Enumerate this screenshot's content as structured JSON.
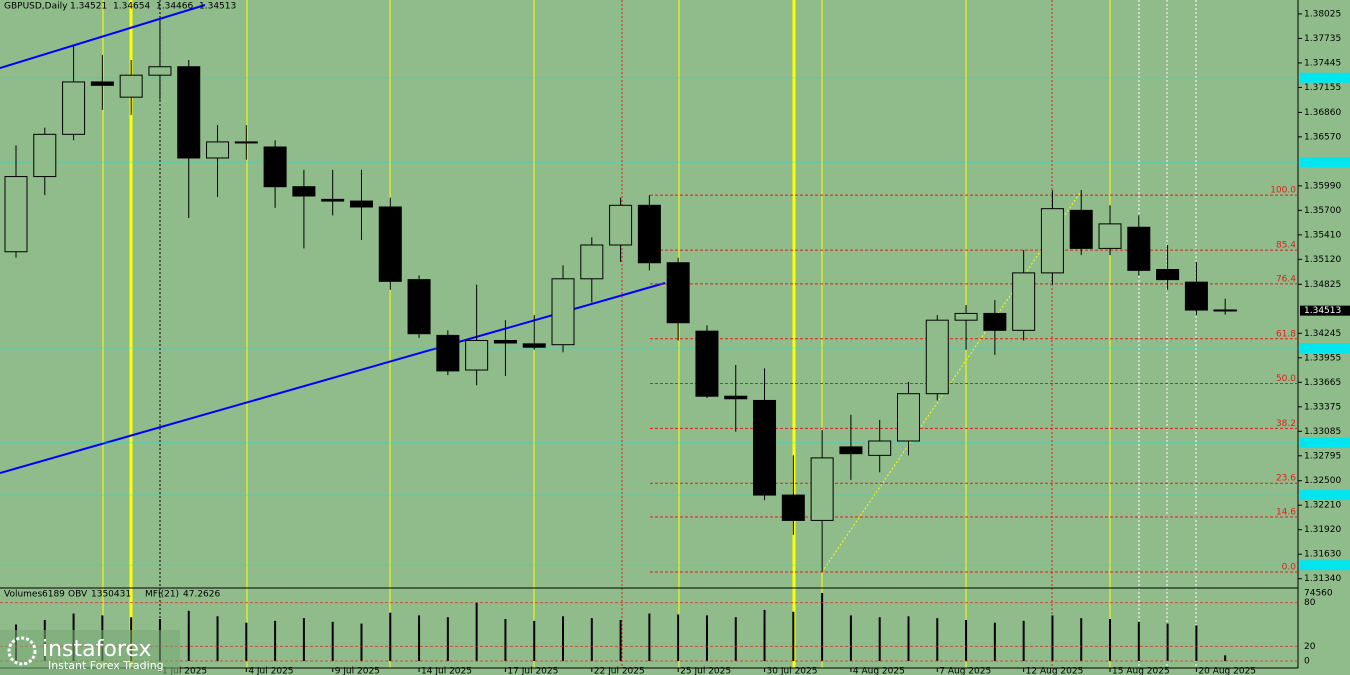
{
  "chart_data": {
    "type": "candlestick",
    "title": "GBPUSD,Daily",
    "categories": [
      null,
      null,
      null,
      null,
      null,
      "1 Jul 2025",
      null,
      null,
      "4 Jul 2025",
      null,
      null,
      "9 Jul 2025",
      null,
      null,
      "14 Jul 2025",
      null,
      null,
      "17 Jul 2025",
      null,
      null,
      "22 Jul 2025",
      null,
      null,
      "25 Jul 2025",
      null,
      null,
      "30 Jul 2025",
      null,
      null,
      "4 Aug 2025",
      null,
      null,
      "7 Aug 2025",
      null,
      null,
      "12 Aug 2025",
      null,
      null,
      "15 Aug 2025",
      null,
      null,
      "20 Aug 2025",
      null
    ],
    "candles": {
      "open": [
        1.3521,
        1.361,
        1.366,
        1.3722,
        1.3704,
        1.373,
        1.374,
        1.3632,
        1.3651,
        1.3645,
        1.3598,
        1.3583,
        1.3581,
        1.3574,
        1.3488,
        1.3422,
        1.3381,
        1.3416,
        1.3412,
        1.3411,
        1.3489,
        1.3529,
        1.3576,
        1.3508,
        1.3427,
        1.335,
        1.3345,
        1.3233,
        1.3203,
        1.329,
        1.328,
        1.3297,
        1.3353,
        1.344,
        1.3448,
        1.3428,
        1.3496,
        1.357,
        1.3525,
        1.355,
        1.35,
        1.3485,
        1.34521
      ],
      "high": [
        1.3647,
        1.3668,
        1.3766,
        1.3754,
        1.3748,
        1.3793,
        1.3748,
        1.3671,
        1.3671,
        1.3653,
        1.3618,
        1.3618,
        1.3618,
        1.3585,
        1.3493,
        1.3428,
        1.3482,
        1.344,
        1.3446,
        1.3505,
        1.3538,
        1.3585,
        1.3588,
        1.3514,
        1.3434,
        1.3387,
        1.3383,
        1.328,
        1.331,
        1.3328,
        1.3322,
        1.3367,
        1.3446,
        1.3458,
        1.3464,
        1.3523,
        1.3594,
        1.3594,
        1.3576,
        1.3564,
        1.3529,
        1.3509,
        1.34654
      ],
      "low": [
        1.3514,
        1.3588,
        1.3653,
        1.3689,
        1.3683,
        1.3701,
        1.3561,
        1.3586,
        1.363,
        1.3573,
        1.3525,
        1.3564,
        1.3535,
        1.3476,
        1.3419,
        1.3375,
        1.3363,
        1.3374,
        1.3405,
        1.3402,
        1.3461,
        1.3509,
        1.3499,
        1.3416,
        1.3348,
        1.3308,
        1.3227,
        1.3186,
        1.3142,
        1.3251,
        1.326,
        1.328,
        1.3345,
        1.3405,
        1.3399,
        1.3416,
        1.3482,
        1.3517,
        1.3517,
        1.3493,
        1.3476,
        1.3446,
        1.34466
      ],
      "close": [
        1.361,
        1.366,
        1.3722,
        1.3718,
        1.373,
        1.374,
        1.3632,
        1.3651,
        1.365,
        1.3598,
        1.3587,
        1.3581,
        1.3574,
        1.3486,
        1.3424,
        1.338,
        1.3416,
        1.3413,
        1.3408,
        1.3489,
        1.3529,
        1.3576,
        1.3508,
        1.3437,
        1.335,
        1.3347,
        1.3233,
        1.3203,
        1.3277,
        1.3282,
        1.3297,
        1.3353,
        1.344,
        1.3448,
        1.3428,
        1.3496,
        1.3572,
        1.3525,
        1.3554,
        1.3499,
        1.3488,
        1.3452,
        1.34513
      ]
    },
    "ylim": [
      1.3123,
      1.3819
    ],
    "yticks": [
      1.38025,
      1.37735,
      1.37445,
      1.37155,
      {
        "value": 1.3686,
        "label": "1.36860"
      },
      {
        "value": 1.3657,
        "label": "1.36570"
      },
      {
        "value": 1.3599,
        "label": "1.35990"
      },
      {
        "value": 1.357,
        "label": "1.35700"
      },
      {
        "value": 1.3541,
        "label": "1.35410"
      },
      {
        "value": 1.3512,
        "label": "1.35120"
      },
      1.34825,
      1.34245,
      1.33955,
      1.33665,
      1.33375,
      1.33085,
      1.32795,
      {
        "value": 1.325,
        "label": "1.32500"
      },
      {
        "value": 1.3221,
        "label": "1.32210"
      },
      {
        "value": 1.3192,
        "label": "1.31920"
      },
      {
        "value": 1.3163,
        "label": "1.31630"
      },
      {
        "value": 1.3134,
        "label": "1.31340"
      }
    ],
    "bull_color": "#8fbc8a",
    "bear_color": "#000000",
    "fib": [
      {
        "label": "100.0",
        "price": 1.3588
      },
      {
        "label": "85.4",
        "price": 1.3523
      },
      {
        "label": "76.4",
        "price": 1.3483
      },
      {
        "label": "61.8",
        "price": 1.3418
      },
      {
        "label": "50.0",
        "price": 1.3365
      },
      {
        "label": "38.2",
        "price": 1.3312
      },
      {
        "label": "23.6",
        "price": 1.3247
      },
      {
        "label": "14.6",
        "price": 1.3207
      },
      {
        "label": "0.0",
        "price": 1.3142
      }
    ],
    "fib_color": "#e02020",
    "levels": [
      1.3727,
      1.3627,
      1.3407,
      1.3295,
      1.3233,
      1.315
    ],
    "level_color": "#00e5ee",
    "volumes": [
      40000,
      45000,
      52000,
      50000,
      48000,
      46000,
      55000,
      49000,
      42000,
      44000,
      47000,
      43000,
      41000,
      53000,
      50000,
      48000,
      64000,
      46000,
      44000,
      49000,
      47000,
      45000,
      52000,
      51000,
      50000,
      48000,
      56000,
      54000,
      74500,
      50000,
      48000,
      49000,
      47000,
      45000,
      42000,
      44000,
      50000,
      47000,
      46000,
      43000,
      41000,
      39000,
      6189
    ],
    "vol_ylim": [
      0,
      74560
    ],
    "vol_yticks": [
      74560
    ],
    "indicators": {
      "volumes_label": "Volumes",
      "obv_label": "OBV",
      "obv": 1350431,
      "mfi_label": "MFI(21)",
      "mfi": 47.2626
    },
    "mfi_ylim": [
      0,
      100
    ],
    "mfi_yticks": [
      80,
      20,
      0
    ]
  },
  "logo": {
    "name": "instaforex",
    "tagline": "Instant Forex Trading"
  }
}
